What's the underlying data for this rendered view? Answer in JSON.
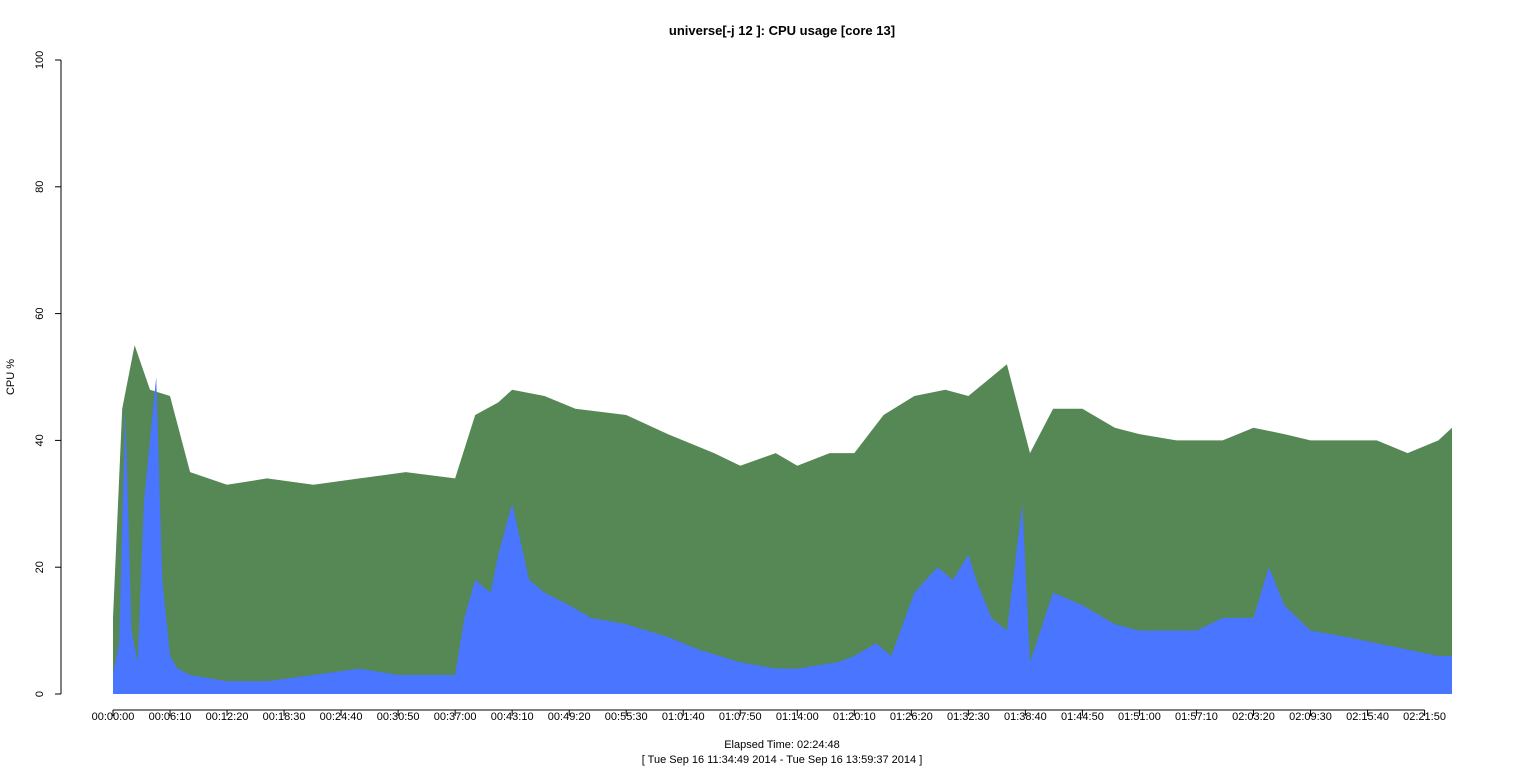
{
  "chart_data": {
    "type": "area",
    "title": "universe[-j 12  ]: CPU usage [core 13]",
    "ylabel": "CPU %",
    "xlabel_line1": "Elapsed Time: 02:24:48",
    "xlabel_line2": "[ Tue Sep 16 11:34:49 2014 - Tue Sep 16 13:59:37 2014 ]",
    "ylim": [
      0,
      100
    ],
    "yticks": [
      "0",
      "20",
      "40",
      "60",
      "80",
      "100"
    ],
    "xlim_seconds": [
      0,
      8688
    ],
    "xtick_seconds": [
      0,
      370,
      740,
      1110,
      1480,
      1850,
      2220,
      2590,
      2960,
      3330,
      3700,
      4070,
      4440,
      4810,
      5180,
      5550,
      5920,
      6290,
      6660,
      7030,
      7400,
      7770,
      8140,
      8510
    ],
    "xticks": [
      "00:00:00",
      "00:06:10",
      "00:12:20",
      "00:18:30",
      "00:24:40",
      "00:30:50",
      "00:37:00",
      "00:43:10",
      "00:49:20",
      "00:55:30",
      "01:01:40",
      "01:07:50",
      "01:14:00",
      "01:20:10",
      "01:26:20",
      "01:32:30",
      "01:38:40",
      "01:44:50",
      "01:51:00",
      "01:57:10",
      "02:03:20",
      "02:09:30",
      "02:15:40",
      "02:21:50"
    ],
    "grid": false,
    "series": [
      {
        "color": "#558855",
        "kind": "total",
        "x_seconds": [
          0,
          60,
          140,
          240,
          370,
          500,
          740,
          1000,
          1300,
          1600,
          1900,
          2220,
          2350,
          2500,
          2590,
          2800,
          3000,
          3330,
          3600,
          3900,
          4070,
          4300,
          4440,
          4650,
          4810,
          5000,
          5200,
          5400,
          5550,
          5700,
          5800,
          5950,
          6100,
          6290,
          6500,
          6660,
          6900,
          7030,
          7200,
          7400,
          7600,
          7770,
          8000,
          8200,
          8400,
          8600,
          8688
        ],
        "values": [
          12,
          45,
          55,
          48,
          47,
          35,
          33,
          34,
          33,
          34,
          35,
          34,
          44,
          46,
          48,
          47,
          45,
          44,
          41,
          38,
          36,
          38,
          36,
          38,
          38,
          44,
          47,
          48,
          47,
          50,
          52,
          38,
          45,
          45,
          42,
          41,
          40,
          40,
          40,
          42,
          41,
          40,
          40,
          40,
          38,
          40,
          42
        ]
      },
      {
        "color": "#4a75ff",
        "kind": "user",
        "x_seconds": [
          0,
          40,
          80,
          120,
          160,
          200,
          240,
          280,
          320,
          370,
          420,
          500,
          740,
          1000,
          1300,
          1600,
          1850,
          2220,
          2280,
          2350,
          2450,
          2500,
          2590,
          2700,
          2800,
          2960,
          3100,
          3330,
          3600,
          3800,
          4070,
          4300,
          4440,
          4700,
          4810,
          4950,
          5050,
          5200,
          5350,
          5450,
          5550,
          5600,
          5700,
          5800,
          5900,
          5950,
          6100,
          6290,
          6500,
          6660,
          6900,
          7030,
          7200,
          7400,
          7500,
          7600,
          7770,
          8000,
          8200,
          8400,
          8600,
          8688
        ],
        "values": [
          3,
          8,
          45,
          10,
          5,
          30,
          40,
          50,
          18,
          6,
          4,
          3,
          2,
          2,
          3,
          4,
          3,
          3,
          12,
          18,
          16,
          22,
          30,
          18,
          16,
          14,
          12,
          11,
          9,
          7,
          5,
          4,
          4,
          5,
          6,
          8,
          6,
          16,
          20,
          18,
          22,
          18,
          12,
          10,
          30,
          5,
          16,
          14,
          11,
          10,
          10,
          10,
          12,
          12,
          20,
          14,
          10,
          9,
          8,
          7,
          6,
          6
        ]
      }
    ]
  }
}
